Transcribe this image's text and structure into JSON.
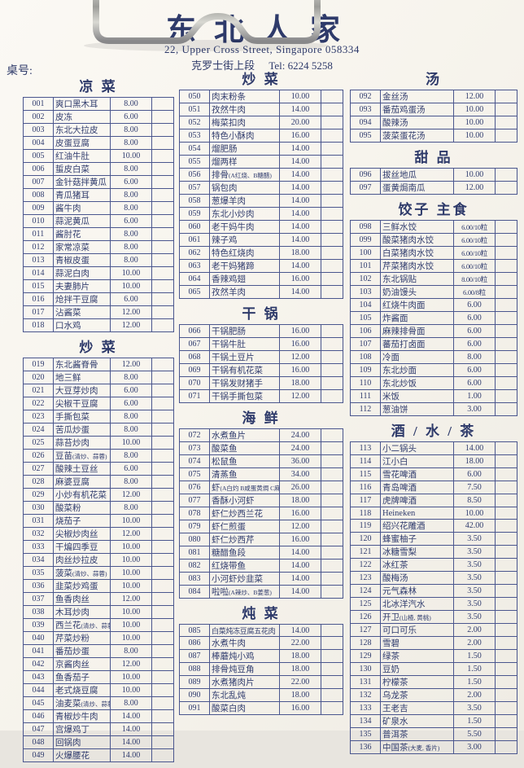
{
  "colors": {
    "ink": "#2f3a6a",
    "table_border": "#4a568e",
    "paper": "#f7f4ed",
    "clip_metal": "#b9b9b3"
  },
  "header": {
    "restaurant_name": "东北人家",
    "address_line1": "22, Upper Cross Street, Singapore 058334",
    "address_line2_cn": "克罗士街上段",
    "tel_label": "Tel:",
    "tel_number": "6224 5258",
    "table_label": "桌号:"
  },
  "columns": [
    {
      "sections": [
        {
          "title": "凉 菜",
          "items": [
            [
              "001",
              "爽口黑木耳",
              "8.00"
            ],
            [
              "002",
              "皮冻",
              "6.00"
            ],
            [
              "003",
              "东北大拉皮",
              "8.00"
            ],
            [
              "004",
              "皮蛋豆腐",
              "8.00"
            ],
            [
              "005",
              "红油牛肚",
              "10.00"
            ],
            [
              "006",
              "蜇皮白菜",
              "8.00"
            ],
            [
              "007",
              "金针菇拌黄瓜",
              "6.00"
            ],
            [
              "008",
              "青瓜猪耳",
              "8.00"
            ],
            [
              "009",
              "酱牛肉",
              "8.00"
            ],
            [
              "010",
              "蒜泥黄瓜",
              "6.00"
            ],
            [
              "011",
              "酱肘花",
              "8.00"
            ],
            [
              "012",
              "家常凉菜",
              "8.00"
            ],
            [
              "013",
              "青椒皮蛋",
              "8.00"
            ],
            [
              "014",
              "蒜泥白肉",
              "10.00"
            ],
            [
              "015",
              "夫妻肺片",
              "10.00"
            ],
            [
              "016",
              "炝拌干豆腐",
              "6.00"
            ],
            [
              "017",
              "沾酱菜",
              "12.00"
            ],
            [
              "018",
              "口水鸡",
              "12.00"
            ]
          ]
        },
        {
          "title": "炒 菜",
          "items": [
            [
              "019",
              "东北酱脊骨",
              "12.00"
            ],
            [
              "020",
              "地三鲜",
              "8.00"
            ],
            [
              "021",
              "大豆芽炒肉",
              "6.00"
            ],
            [
              "022",
              "尖椒干豆腐",
              "6.00"
            ],
            [
              "023",
              "手撕包菜",
              "8.00"
            ],
            [
              "024",
              "苦瓜炒蛋",
              "8.00"
            ],
            [
              "025",
              "蒜苔炒肉",
              "10.00"
            ],
            [
              "026",
              "豆苗(清炒、蒜蓉)",
              "8.00"
            ],
            [
              "027",
              "酸辣土豆丝",
              "6.00"
            ],
            [
              "028",
              "麻婆豆腐",
              "8.00"
            ],
            [
              "029",
              "小炒有机花菜",
              "12.00"
            ],
            [
              "030",
              "酸菜粉",
              "8.00"
            ],
            [
              "031",
              "烧茄子",
              "10.00"
            ],
            [
              "032",
              "尖椒炒肉丝",
              "12.00"
            ],
            [
              "033",
              "干煸四季豆",
              "10.00"
            ],
            [
              "034",
              "肉丝炒拉皮",
              "10.00"
            ],
            [
              "035",
              "菠菜(清炒、蒜蓉)",
              "10.00"
            ],
            [
              "036",
              "韭菜炒鸡蛋",
              "10.00"
            ],
            [
              "037",
              "鱼香肉丝",
              "12.00"
            ],
            [
              "038",
              "木耳炒肉",
              "10.00"
            ],
            [
              "039",
              "西兰花(清炒、蒜蓉)",
              "10.00"
            ],
            [
              "040",
              "芹菜炒粉",
              "10.00"
            ],
            [
              "041",
              "番茄炒蛋",
              "8.00"
            ],
            [
              "042",
              "京酱肉丝",
              "12.00"
            ],
            [
              "043",
              "鱼香茄子",
              "10.00"
            ],
            [
              "044",
              "老式烧豆腐",
              "10.00"
            ],
            [
              "045",
              "油麦菜(清炒、蒜蓉)",
              "8.00"
            ],
            [
              "046",
              "青椒炒牛肉",
              "14.00"
            ],
            [
              "047",
              "宫爆鸡丁",
              "14.00"
            ],
            [
              "048",
              "回锅肉",
              "14.00"
            ],
            [
              "049",
              "火爆腰花",
              "14.00"
            ]
          ]
        }
      ]
    },
    {
      "sections": [
        {
          "title": "炒 菜",
          "items": [
            [
              "050",
              "肉末粉条",
              "10.00"
            ],
            [
              "051",
              "孜然牛肉",
              "14.00"
            ],
            [
              "052",
              "梅菜扣肉",
              "20.00"
            ],
            [
              "053",
              "特色小酥肉",
              "16.00"
            ],
            [
              "054",
              "熘肥肠",
              "14.00"
            ],
            [
              "055",
              "熘两样",
              "14.00"
            ],
            [
              "056",
              "排骨(A红烧、B糖醋)",
              "14.00"
            ],
            [
              "057",
              "锅包肉",
              "14.00"
            ],
            [
              "058",
              "葱爆羊肉",
              "14.00"
            ],
            [
              "059",
              "东北小炒肉",
              "14.00"
            ],
            [
              "060",
              "老干妈牛肉",
              "14.00"
            ],
            [
              "061",
              "辣子鸡",
              "14.00"
            ],
            [
              "062",
              "特色红烧肉",
              "18.00"
            ],
            [
              "063",
              "老干妈猪蹄",
              "14.00"
            ],
            [
              "064",
              "香辣鸡翅",
              "16.00"
            ],
            [
              "065",
              "孜然羊肉",
              "14.00"
            ]
          ]
        },
        {
          "title": "干 锅",
          "items": [
            [
              "066",
              "干锅肥肠",
              "16.00"
            ],
            [
              "067",
              "干锅牛肚",
              "16.00"
            ],
            [
              "068",
              "干锅土豆片",
              "12.00"
            ],
            [
              "069",
              "干锅有机花菜",
              "16.00"
            ],
            [
              "070",
              "干锅发财猪手",
              "18.00"
            ],
            [
              "071",
              "干锅手撕包菜",
              "12.00"
            ]
          ]
        },
        {
          "title": "海 鲜",
          "items": [
            [
              "072",
              "水煮鱼片",
              "24.00"
            ],
            [
              "073",
              "酸菜鱼",
              "24.00"
            ],
            [
              "074",
              "松鼠鱼",
              "36.00"
            ],
            [
              "075",
              "清蒸鱼",
              "34.00"
            ],
            [
              "076",
              "虾(A白灼 B咸蛋黄焗 C麻辣)",
              "26.00"
            ],
            [
              "077",
              "香酥小河虾",
              "18.00"
            ],
            [
              "078",
              "虾仁炒西兰花",
              "16.00"
            ],
            [
              "079",
              "虾仁煎蛋",
              "12.00"
            ],
            [
              "080",
              "虾仁炒西芹",
              "16.00"
            ],
            [
              "081",
              "糖醋鱼段",
              "14.00"
            ],
            [
              "082",
              "红烧带鱼",
              "14.00"
            ],
            [
              "083",
              "小河虾炒韭菜",
              "14.00"
            ],
            [
              "084",
              "啦啦(A辣炒、B姜葱)",
              "14.00"
            ]
          ]
        },
        {
          "title": "炖 菜",
          "items": [
            [
              "085",
              "白菜炖冻豆腐五花肉",
              "14.00"
            ],
            [
              "086",
              "水煮牛肉",
              "22.00"
            ],
            [
              "087",
              "棒蘑炖小鸡",
              "18.00"
            ],
            [
              "088",
              "排骨炖豆角",
              "18.00"
            ],
            [
              "089",
              "水煮猪肉片",
              "22.00"
            ],
            [
              "090",
              "东北乱炖",
              "18.00"
            ],
            [
              "091",
              "酸菜白肉",
              "16.00"
            ]
          ]
        }
      ]
    },
    {
      "sections": [
        {
          "title": "汤",
          "items": [
            [
              "092",
              "金丝汤",
              "12.00"
            ],
            [
              "093",
              "番茄鸡蛋汤",
              "10.00"
            ],
            [
              "094",
              "酸辣汤",
              "10.00"
            ],
            [
              "095",
              "菠菜蛋花汤",
              "10.00"
            ]
          ]
        },
        {
          "title": "甜 品",
          "items": [
            [
              "096",
              "拔丝地瓜",
              "10.00"
            ],
            [
              "097",
              "蛋黄焗南瓜",
              "12.00"
            ]
          ]
        },
        {
          "title": "饺子 主食",
          "items": [
            [
              "098",
              "三鲜水饺",
              "6.00/10粒"
            ],
            [
              "099",
              "酸菜猪肉水饺",
              "6.00/10粒"
            ],
            [
              "100",
              "白菜猪肉水饺",
              "6.00/10粒"
            ],
            [
              "101",
              "芹菜猪肉水饺",
              "6.00/10粒"
            ],
            [
              "102",
              "东北锅贴",
              "8.00/10粒"
            ],
            [
              "103",
              "奶油馒头",
              "6.00/8粒"
            ],
            [
              "104",
              "红烧牛肉面",
              "6.00"
            ],
            [
              "105",
              "炸酱面",
              "6.00"
            ],
            [
              "106",
              "麻辣排骨面",
              "6.00"
            ],
            [
              "107",
              "蕃茄打卤面",
              "6.00"
            ],
            [
              "108",
              "冷面",
              "8.00"
            ],
            [
              "109",
              "东北炒面",
              "6.00"
            ],
            [
              "110",
              "东北炒饭",
              "6.00"
            ],
            [
              "111",
              "米饭",
              "1.00"
            ],
            [
              "112",
              "葱油饼",
              "3.00"
            ]
          ]
        },
        {
          "title": "酒 / 水 / 茶",
          "items": [
            [
              "113",
              "小二锅头",
              "14.00"
            ],
            [
              "114",
              "江小白",
              "18.00"
            ],
            [
              "115",
              "雪花啤酒",
              "6.00"
            ],
            [
              "116",
              "青岛啤酒",
              "7.50"
            ],
            [
              "117",
              "虎牌啤酒",
              "8.50"
            ],
            [
              "118",
              "Heineken",
              "10.00"
            ],
            [
              "119",
              "绍兴花雕酒",
              "42.00"
            ],
            [
              "120",
              "蜂蜜柚子",
              "3.50"
            ],
            [
              "121",
              "冰糖雪梨",
              "3.50"
            ],
            [
              "122",
              "冰红茶",
              "3.50"
            ],
            [
              "123",
              "酸梅汤",
              "3.50"
            ],
            [
              "124",
              "元气森林",
              "3.50"
            ],
            [
              "125",
              "北冰洋汽水",
              "3.50"
            ],
            [
              "126",
              "开卫(山楂, 黄桃)",
              "3.50"
            ],
            [
              "127",
              "可口可乐",
              "2.00"
            ],
            [
              "128",
              "雪碧",
              "2.00"
            ],
            [
              "129",
              "绿茶",
              "1.50"
            ],
            [
              "130",
              "豆奶",
              "1.50"
            ],
            [
              "131",
              "柠檬茶",
              "1.50"
            ],
            [
              "132",
              "乌龙茶",
              "2.00"
            ],
            [
              "133",
              "王老吉",
              "3.50"
            ],
            [
              "134",
              "矿泉水",
              "1.50"
            ],
            [
              "135",
              "普洱茶",
              "5.50"
            ],
            [
              "136",
              "中国茶(大麦, 香片)",
              "3.00"
            ]
          ]
        }
      ]
    }
  ]
}
